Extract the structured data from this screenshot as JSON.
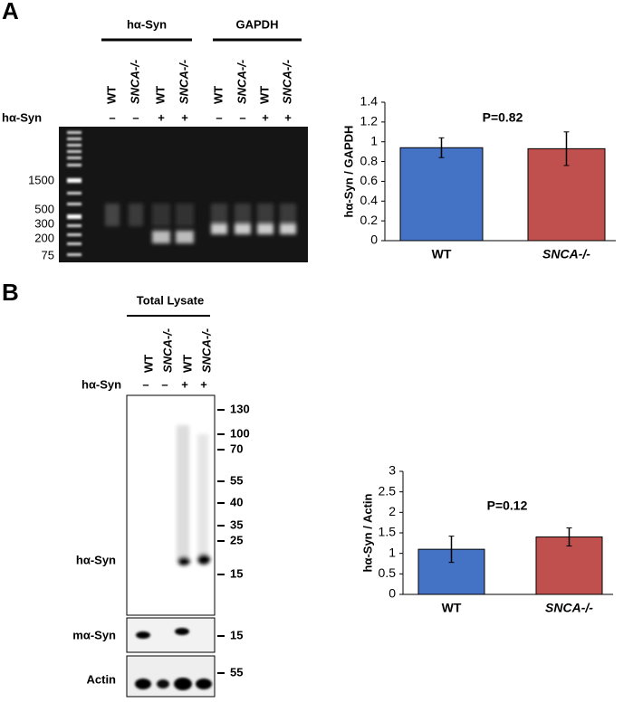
{
  "panel_a": {
    "label": "A",
    "groups": [
      "hα-Syn",
      "GAPDH"
    ],
    "lanes": [
      "WT",
      "SNCA-/-",
      "WT",
      "SNCA-/-",
      "WT",
      "SNCA-/-",
      "WT",
      "SNCA-/-"
    ],
    "row_label": "hα-Syn",
    "signs": [
      "–",
      "–",
      "+",
      "+",
      "–",
      "–",
      "+",
      "+"
    ],
    "ladder": [
      "1500",
      "500",
      "300",
      "200",
      "75"
    ]
  },
  "panel_b": {
    "label": "B",
    "group": "Total Lysate",
    "lanes": [
      "WT",
      "SNCA-/-",
      "WT",
      "SNCA-/-"
    ],
    "row_label": "hα-Syn",
    "signs": [
      "–",
      "–",
      "+",
      "+"
    ],
    "markers": [
      "130",
      "100",
      "70",
      "55",
      "40",
      "35",
      "25",
      "15"
    ],
    "blots": [
      "hα-Syn",
      "mα-Syn",
      "Actin"
    ],
    "m_marker": "15",
    "actin_marker": "55"
  },
  "chart_data": [
    {
      "type": "bar",
      "y_label": "hα-Syn / GAPDH",
      "annotation": "P=0.82",
      "categories": [
        "WT",
        "SNCA-/-"
      ],
      "values": [
        0.94,
        0.93
      ],
      "errors": [
        0.1,
        0.17
      ],
      "colors": [
        "#4472c4",
        "#c0504d"
      ],
      "ylim": [
        0,
        1.4
      ],
      "yticks": [
        0,
        0.2,
        0.4,
        0.6,
        0.8,
        1,
        1.2,
        1.4
      ]
    },
    {
      "type": "bar",
      "y_label": "hα-Syn / Actin",
      "annotation": "P=0.12",
      "categories": [
        "WT",
        "SNCA-/-"
      ],
      "values": [
        1.1,
        1.4
      ],
      "errors": [
        0.32,
        0.22
      ],
      "colors": [
        "#4472c4",
        "#c0504d"
      ],
      "ylim": [
        0,
        3
      ],
      "yticks": [
        0,
        0.5,
        1,
        1.5,
        2,
        2.5,
        3
      ]
    }
  ]
}
